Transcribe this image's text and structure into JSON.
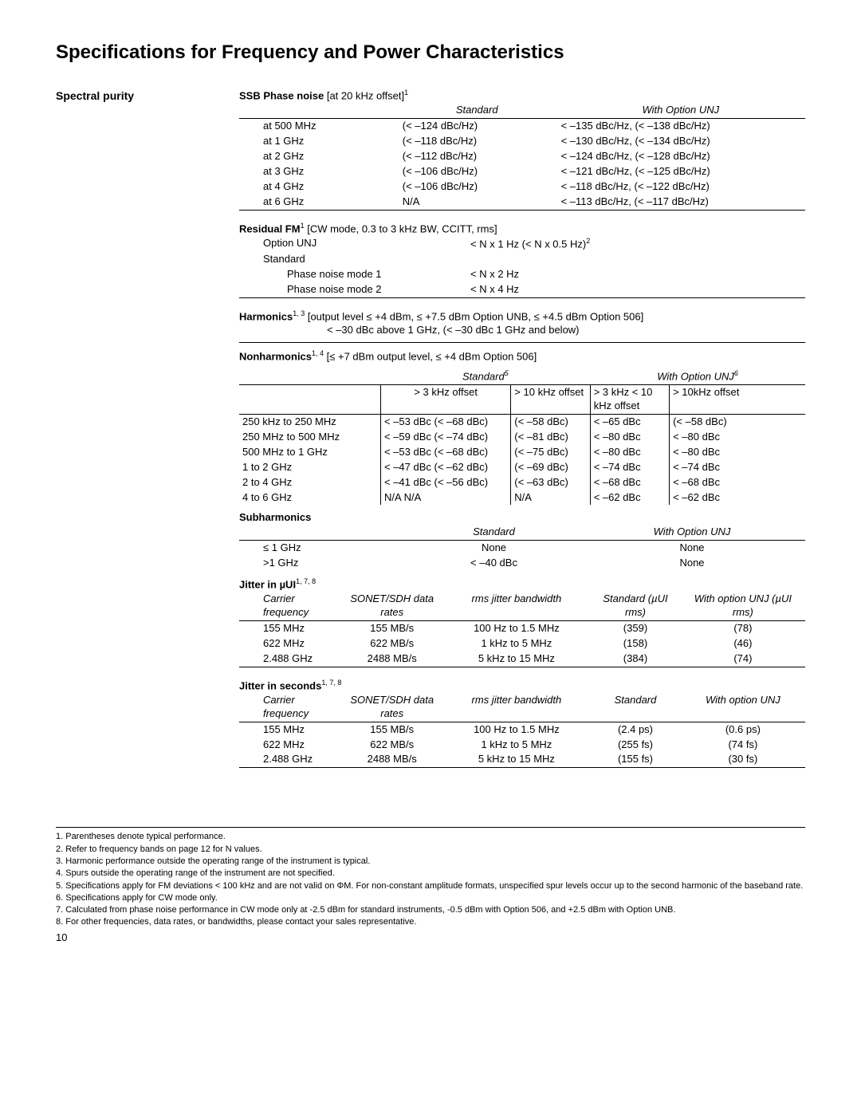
{
  "page_title": "Specifications for Frequency and Power Characteristics",
  "side_heading": "Spectral purity",
  "page_number": "10",
  "ssb": {
    "title": "SSB Phase noise",
    "title_note": " [at 20 kHz offset]",
    "title_sup": "1",
    "h_std": "Standard",
    "h_unj": "With Option UNJ",
    "rows": [
      {
        "f": "at 500 MHz",
        "std": "(< –124 dBc/Hz)",
        "unj": "< –135 dBc/Hz, (< –138 dBc/Hz)"
      },
      {
        "f": "at 1 GHz",
        "std": "(< –118 dBc/Hz)",
        "unj": "< –130 dBc/Hz, (< –134 dBc/Hz)"
      },
      {
        "f": "at 2 GHz",
        "std": "(< –112 dBc/Hz)",
        "unj": "< –124 dBc/Hz, (< –128 dBc/Hz)"
      },
      {
        "f": "at 3 GHz",
        "std": "(< –106 dBc/Hz)",
        "unj": "< –121 dBc/Hz, (< –125 dBc/Hz)"
      },
      {
        "f": "at 4 GHz",
        "std": "(< –106 dBc/Hz)",
        "unj": "< –118 dBc/Hz, (< –122 dBc/Hz)"
      },
      {
        "f": "at 6 GHz",
        "std": "N/A",
        "unj": "< –113 dBc/Hz, (< –117 dBc/Hz)"
      }
    ]
  },
  "rfm": {
    "title": "Residual FM",
    "title_sup": "1",
    "title_note": " [CW mode, 0.3 to 3 kHz BW, CCITT, rms]",
    "r1a": "Option UNJ",
    "r1b": "< N x 1 Hz (< N x 0.5 Hz)",
    "r1b_sup": "2",
    "r2a": "Standard",
    "r3a": "Phase noise mode 1",
    "r3b": "< N x 2 Hz",
    "r4a": "Phase noise mode 2",
    "r4b": "< N x 4 Hz"
  },
  "harm": {
    "title": "Harmonics",
    "title_sup": "1, 3",
    "title_note": " [output level ≤ +4 dBm, ≤ +7.5 dBm Option UNB, ≤ +4.5 dBm Option 506]",
    "body": "< –30 dBc above 1 GHz, (< –30 dBc 1 GHz and below)"
  },
  "nonharm": {
    "title": "Nonharmonics",
    "title_sup": "1, 4",
    "title_note": " [≤ +7 dBm output level,  ≤ +4 dBm Option 506]",
    "h_std": "Standard",
    "h_std_sup": "5",
    "h_unj": "With Option UNJ",
    "h_unj_sup": "6",
    "sub_std1": "> 3 kHz offset",
    "sub_std2": "> 10 kHz offset",
    "sub_unj1": "> 3 kHz < 10 kHz offset",
    "sub_unj2": "> 10kHz offset",
    "rows": [
      {
        "f": "250 kHz to 250 MHz",
        "s1": "< –53 dBc (< –68 dBc)",
        "s2": "(< –58 dBc)",
        "u1": "< –65 dBc",
        "u2": "(< –58 dBc)"
      },
      {
        "f": "250 MHz to 500 MHz",
        "s1": "< –59 dBc (< –74 dBc)",
        "s2": "(< –81 dBc)",
        "u1": "< –80 dBc",
        "u2": "< –80 dBc"
      },
      {
        "f": "500 MHz to 1 GHz",
        "s1": "< –53 dBc (< –68 dBc)",
        "s2": "(< –75 dBc)",
        "u1": "< –80 dBc",
        "u2": "< –80 dBc"
      },
      {
        "f": "1 to 2 GHz",
        "s1": "< –47 dBc (< –62 dBc)",
        "s2": "(< –69 dBc)",
        "u1": "< –74 dBc",
        "u2": "< –74 dBc"
      },
      {
        "f": "2 to 4 GHz",
        "s1": "< –41 dBc (< –56 dBc)",
        "s2": "(< –63 dBc)",
        "u1": "< –68 dBc",
        "u2": "< –68 dBc"
      },
      {
        "f": "4 to 6 GHz",
        "s1": "N/A        N/A",
        "s2": "N/A",
        "u1": "< –62 dBc",
        "u2": "< –62 dBc"
      }
    ]
  },
  "subharm": {
    "title": "Subharmonics",
    "h_std": "Standard",
    "h_unj": "With Option UNJ",
    "r1a": "≤ 1 GHz",
    "r1b": "None",
    "r1c": "None",
    "r2a": ">1 GHz",
    "r2b": "< –40 dBc",
    "r2c": "None"
  },
  "jui": {
    "title": "Jitter in µUI",
    "title_sup": "1, 7, 8",
    "h1": "Carrier frequency",
    "h2": "SONET/SDH data rates",
    "h3": "rms jitter bandwidth",
    "h4": "Standard (µUI rms)",
    "h5": "With option UNJ (µUI rms)",
    "rows": [
      {
        "c1": "155 MHz",
        "c2": "155 MB/s",
        "c3": "100 Hz to 1.5 MHz",
        "c4": "(359)",
        "c5": "(78)"
      },
      {
        "c1": "622 MHz",
        "c2": "622 MB/s",
        "c3": "1 kHz to 5 MHz",
        "c4": "(158)",
        "c5": "(46)"
      },
      {
        "c1": "2.488 GHz",
        "c2": "2488 MB/s",
        "c3": "5 kHz to 15 MHz",
        "c4": "(384)",
        "c5": "(74)"
      }
    ]
  },
  "jsec": {
    "title": "Jitter in seconds",
    "title_sup": "1, 7, 8",
    "h1": "Carrier frequency",
    "h2": "SONET/SDH data rates",
    "h3": "rms jitter bandwidth",
    "h4": "Standard",
    "h5": "With option UNJ",
    "rows": [
      {
        "c1": "155 MHz",
        "c2": "155 MB/s",
        "c3": "100 Hz to 1.5 MHz",
        "c4": "(2.4 ps)",
        "c5": "(0.6 ps)"
      },
      {
        "c1": "622 MHz",
        "c2": "622 MB/s",
        "c3": "1 kHz to 5 MHz",
        "c4": "(255 fs)",
        "c5": "(74 fs)"
      },
      {
        "c1": "2.488 GHz",
        "c2": "2488 MB/s",
        "c3": "5 kHz to 15 MHz",
        "c4": "(155 fs)",
        "c5": "(30 fs)"
      }
    ]
  },
  "footnotes": [
    "1.  Parentheses denote typical performance.",
    "2.  Refer to frequency bands on page 12 for N values.",
    "3.  Harmonic performance outside the operating range of the instrument is typical.",
    "4.  Spurs outside the operating range of the instrument are not specified.",
    "5.  Specifications apply for FM deviations < 100 kHz and are not valid on ΦM. For non-constant amplitude formats, unspecified spur levels occur up to the second harmonic of  the baseband rate.",
    "6.  Specifications apply for CW mode only.",
    "7.  Calculated from phase noise performance in CW mode only at -2.5 dBm for standard instruments, -0.5 dBm with Option 506, and +2.5 dBm with Option UNB.",
    "8.  For other frequencies, data rates, or bandwidths, please contact your sales representative."
  ]
}
